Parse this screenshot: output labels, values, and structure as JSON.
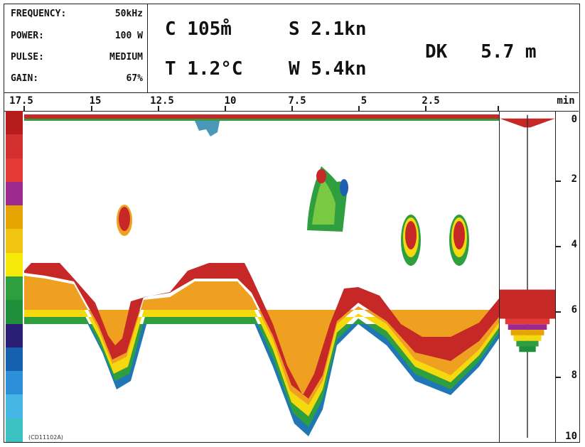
{
  "settings": [
    {
      "label": "FREQUENCY:",
      "value": "50kHz"
    },
    {
      "label": "POWER:",
      "value": "100 W"
    },
    {
      "label": "PULSE:",
      "value": "MEDIUM"
    },
    {
      "label": "GAIN:",
      "value": "67%"
    }
  ],
  "readouts": {
    "course": "C 105m̊",
    "speed": "S 2.1kn",
    "temperature": "T 1.2°C",
    "wind": "W 5.4kn",
    "depth_below_keel": "DK   5.7 m"
  },
  "time_axis": {
    "labels": [
      "17.5",
      "15",
      "12.5",
      "10",
      "7.5",
      "5",
      "2.5"
    ],
    "unit": "min"
  },
  "depth_axis": {
    "labels": [
      "0",
      "2",
      "4",
      "6",
      "8",
      "10"
    ]
  },
  "figure_code": "(CD11102A)",
  "colors": {
    "scale": [
      "#b71c1c",
      "#d32f2f",
      "#e53935",
      "#9c2a8e",
      "#e5a400",
      "#f1c40f",
      "#f7ea0a",
      "#2e9e3f",
      "#1f8f3b",
      "#2a1f74",
      "#1660b0",
      "#2c8fd8",
      "#45b6e6",
      "#3cc0c0"
    ],
    "bottom_red": "#c62828",
    "fish_green": "#3da35a"
  }
}
